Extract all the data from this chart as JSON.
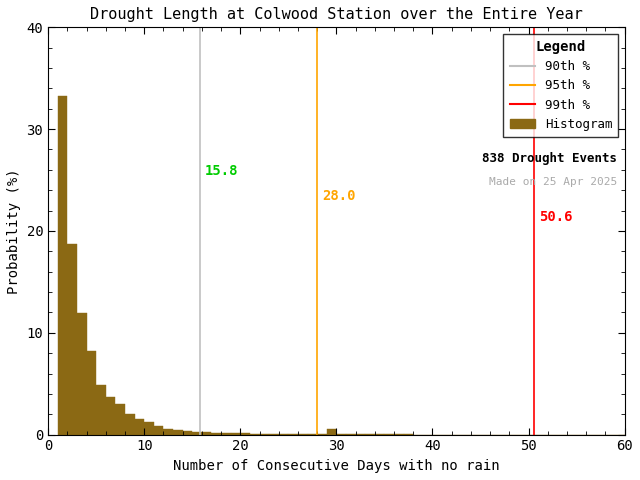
{
  "title": "Drought Length at Colwood Station over the Entire Year",
  "xlabel": "Number of Consecutive Days with no rain",
  "ylabel": "Probability (%)",
  "xlim": [
    0,
    60
  ],
  "ylim": [
    0,
    40
  ],
  "xticks": [
    0,
    10,
    20,
    30,
    40,
    50,
    60
  ],
  "yticks": [
    0,
    10,
    20,
    30,
    40
  ],
  "bar_color": "#8B6914",
  "bar_edge_color": "#8B6914",
  "percentile_90": 15.8,
  "percentile_95": 28.0,
  "percentile_99": 50.6,
  "percentile_90_color": "#C0C0C0",
  "percentile_90_legend_color": "#00CC00",
  "percentile_95_color": "#FFA500",
  "percentile_99_color": "#FF0000",
  "annot_90_color": "#00CC00",
  "annot_95_color": "#FFA500",
  "annot_99_color": "#FF0000",
  "n_events": 838,
  "made_on": "Made on 25 Apr 2025",
  "made_on_color": "#AAAAAA",
  "legend_title": "Legend",
  "bar_probabilities": [
    33.3,
    18.7,
    11.9,
    8.2,
    4.9,
    3.7,
    3.0,
    2.0,
    1.5,
    1.2,
    0.8,
    0.6,
    0.5,
    0.4,
    0.3,
    0.25,
    0.2,
    0.18,
    0.15,
    0.12,
    0.1,
    0.09,
    0.08,
    0.07,
    0.06,
    0.05,
    0.05,
    0.04,
    0.6,
    0.04,
    0.03,
    0.03,
    0.02,
    0.02,
    0.02,
    0.02,
    0.02,
    0.01,
    0.01,
    0.01,
    0.01,
    0.01,
    0.01,
    0.0,
    0.0,
    0.0,
    0.0,
    0.0,
    0.0,
    0.0,
    0.0,
    0.0,
    0.0,
    0.0,
    0.0,
    0.0,
    0.0,
    0.0,
    0.0,
    0.0
  ]
}
